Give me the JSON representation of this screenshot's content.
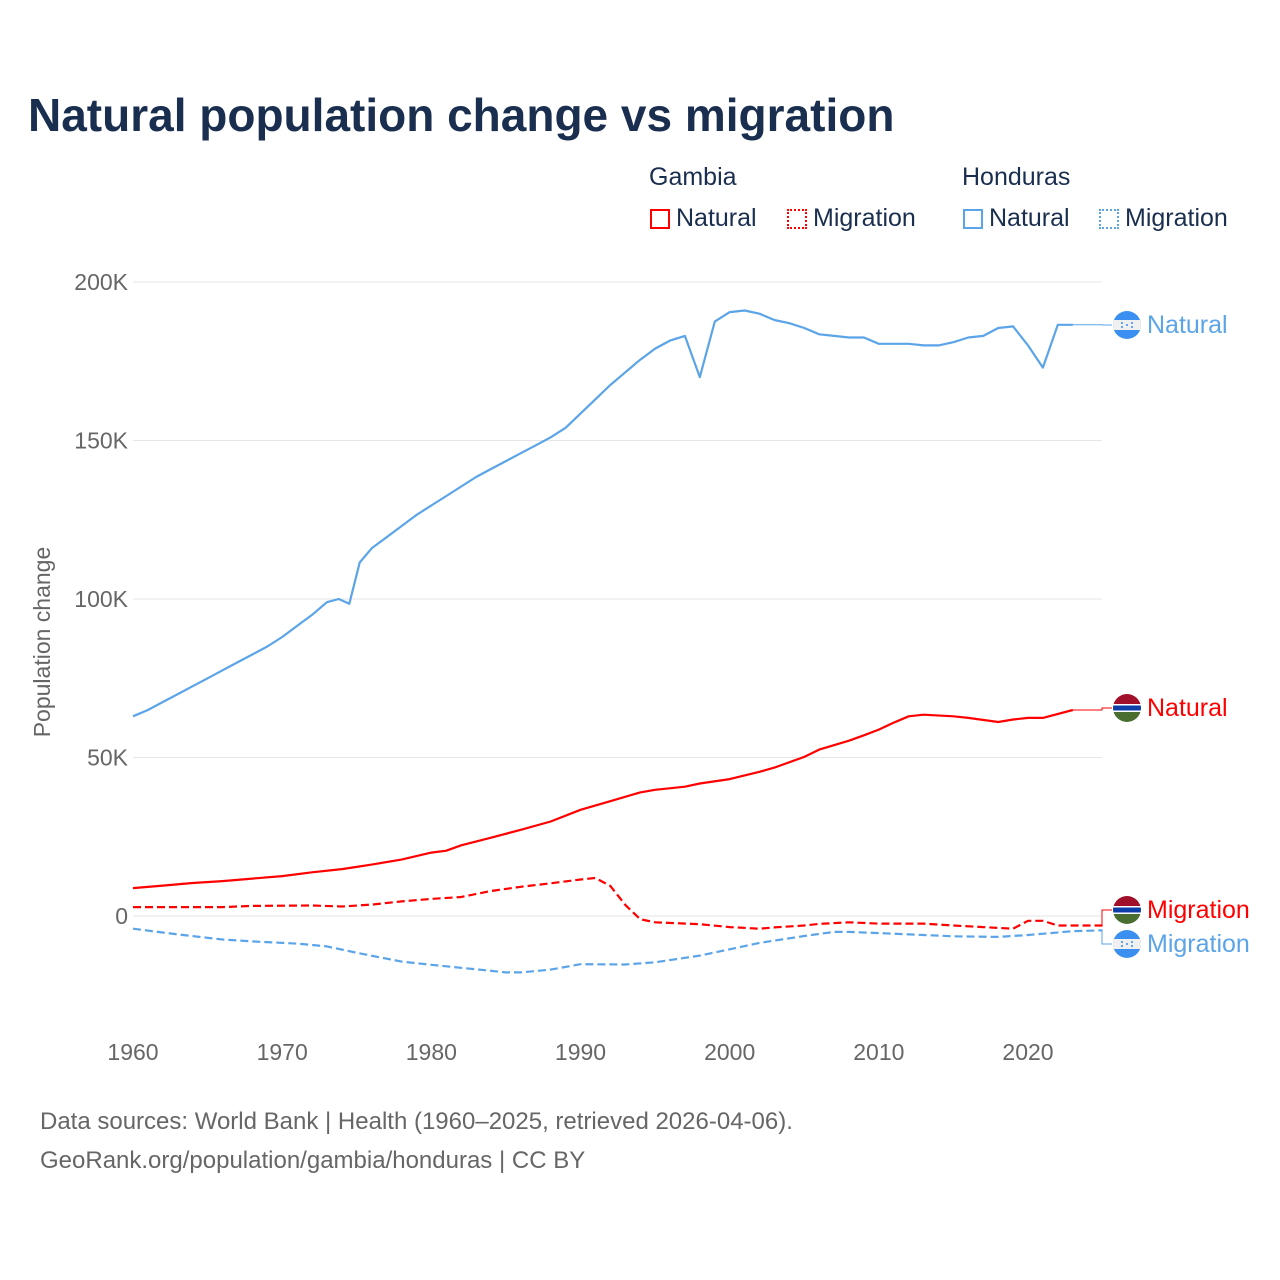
{
  "title": "Natural population change vs migration",
  "legend": {
    "groups": [
      {
        "name": "Gambia",
        "items": [
          "Natural",
          "Migration"
        ]
      },
      {
        "name": "Honduras",
        "items": [
          "Natural",
          "Migration"
        ]
      }
    ]
  },
  "colors": {
    "gambia": "#ff0000",
    "honduras": "#5ba4e8",
    "grid": "#e6e6e6",
    "text": "#1a2e4f",
    "axis_text": "#666666"
  },
  "footer": {
    "line1": "Data sources: World Bank | Health (1960–2025, retrieved 2026-04-06).",
    "line2": "GeoRank.org/population/gambia/honduras | CC BY"
  },
  "chart_data": {
    "type": "line",
    "title": "Natural population change vs migration",
    "xlabel": "",
    "ylabel": "Population change",
    "xlim": [
      1960,
      2025
    ],
    "ylim": [
      -30000,
      200000
    ],
    "x_ticks": [
      "1960",
      "1970",
      "1980",
      "1990",
      "2000",
      "2010",
      "2020"
    ],
    "x_tick_values": [
      1960,
      1970,
      1980,
      1990,
      2000,
      2010,
      2020
    ],
    "y_ticks": [
      "0",
      "50K",
      "100K",
      "150K",
      "200K"
    ],
    "y_tick_values": [
      0,
      50000,
      100000,
      150000,
      200000
    ],
    "grid": true,
    "series": [
      {
        "name": "Natural",
        "country": "Honduras",
        "style": "solid",
        "end_label": "Natural",
        "points": [
          [
            1960,
            63000
          ],
          [
            1961,
            65000
          ],
          [
            1962,
            67500
          ],
          [
            1963,
            70000
          ],
          [
            1964,
            72500
          ],
          [
            1965,
            75000
          ],
          [
            1966,
            77500
          ],
          [
            1967,
            80000
          ],
          [
            1968,
            82500
          ],
          [
            1969,
            85000
          ],
          [
            1970,
            88000
          ],
          [
            1971,
            91500
          ],
          [
            1972,
            95000
          ],
          [
            1973,
            99000
          ],
          [
            1973.8,
            100000
          ],
          [
            1974.5,
            98500
          ],
          [
            1975.2,
            111500
          ],
          [
            1976,
            116000
          ],
          [
            1977,
            119500
          ],
          [
            1978,
            123000
          ],
          [
            1979,
            126500
          ],
          [
            1980,
            129500
          ],
          [
            1981,
            132500
          ],
          [
            1982,
            135500
          ],
          [
            1983,
            138500
          ],
          [
            1984,
            141000
          ],
          [
            1985,
            143500
          ],
          [
            1986,
            146000
          ],
          [
            1987,
            148500
          ],
          [
            1988,
            151000
          ],
          [
            1989,
            154000
          ],
          [
            1990,
            158500
          ],
          [
            1991,
            163000
          ],
          [
            1992,
            167500
          ],
          [
            1993,
            171500
          ],
          [
            1994,
            175500
          ],
          [
            1995,
            179000
          ],
          [
            1996,
            181500
          ],
          [
            1997,
            183000
          ],
          [
            1998,
            170000
          ],
          [
            1999,
            187500
          ],
          [
            2000,
            190500
          ],
          [
            2001,
            191000
          ],
          [
            2002,
            190000
          ],
          [
            2003,
            188000
          ],
          [
            2004,
            187000
          ],
          [
            2005,
            185500
          ],
          [
            2006,
            183500
          ],
          [
            2007,
            183000
          ],
          [
            2008,
            182500
          ],
          [
            2009,
            182500
          ],
          [
            2010,
            180500
          ],
          [
            2011,
            180500
          ],
          [
            2012,
            180500
          ],
          [
            2013,
            180000
          ],
          [
            2014,
            180000
          ],
          [
            2015,
            181000
          ],
          [
            2016,
            182500
          ],
          [
            2017,
            183000
          ],
          [
            2018,
            185500
          ],
          [
            2019,
            186000
          ],
          [
            2020,
            180000
          ],
          [
            2021,
            173000
          ],
          [
            2022,
            186500
          ],
          [
            2023,
            186500
          ]
        ]
      },
      {
        "name": "Natural",
        "country": "Gambia",
        "style": "solid",
        "end_label": "Natural",
        "points": [
          [
            1960,
            8800
          ],
          [
            1962,
            9600
          ],
          [
            1964,
            10400
          ],
          [
            1966,
            11000
          ],
          [
            1968,
            11800
          ],
          [
            1970,
            12600
          ],
          [
            1972,
            13800
          ],
          [
            1974,
            14800
          ],
          [
            1975,
            15500
          ],
          [
            1976,
            16200
          ],
          [
            1978,
            17800
          ],
          [
            1980,
            20000
          ],
          [
            1981,
            20600
          ],
          [
            1982,
            22300
          ],
          [
            1984,
            24700
          ],
          [
            1986,
            27200
          ],
          [
            1988,
            29800
          ],
          [
            1990,
            33500
          ],
          [
            1992,
            36200
          ],
          [
            1994,
            39000
          ],
          [
            1995,
            39800
          ],
          [
            1997,
            40800
          ],
          [
            1998,
            41800
          ],
          [
            2000,
            43200
          ],
          [
            2002,
            45500
          ],
          [
            2003,
            46800
          ],
          [
            2005,
            50200
          ],
          [
            2006,
            52500
          ],
          [
            2008,
            55300
          ],
          [
            2009,
            57000
          ],
          [
            2010,
            58800
          ],
          [
            2011,
            61000
          ],
          [
            2012,
            63000
          ],
          [
            2013,
            63500
          ],
          [
            2015,
            63000
          ],
          [
            2016,
            62500
          ],
          [
            2018,
            61200
          ],
          [
            2019,
            62000
          ],
          [
            2020,
            62500
          ],
          [
            2021,
            62500
          ],
          [
            2023,
            65000
          ]
        ]
      },
      {
        "name": "Migration",
        "country": "Gambia",
        "style": "dashed",
        "end_label": "Migration",
        "points": [
          [
            1960,
            2800
          ],
          [
            1966,
            2800
          ],
          [
            1968,
            3200
          ],
          [
            1972,
            3300
          ],
          [
            1974,
            3000
          ],
          [
            1976,
            3600
          ],
          [
            1978,
            4600
          ],
          [
            1980,
            5400
          ],
          [
            1982,
            6000
          ],
          [
            1984,
            7900
          ],
          [
            1986,
            9200
          ],
          [
            1988,
            10300
          ],
          [
            1990,
            11500
          ],
          [
            1991,
            12000
          ],
          [
            1992,
            9500
          ],
          [
            1993,
            3500
          ],
          [
            1994,
            -1000
          ],
          [
            1995,
            -2000
          ],
          [
            1998,
            -2600
          ],
          [
            2000,
            -3500
          ],
          [
            2002,
            -4000
          ],
          [
            2003,
            -3600
          ],
          [
            2005,
            -3000
          ],
          [
            2006,
            -2500
          ],
          [
            2008,
            -2000
          ],
          [
            2010,
            -2400
          ],
          [
            2013,
            -2400
          ],
          [
            2015,
            -3000
          ],
          [
            2017,
            -3500
          ],
          [
            2019,
            -4000
          ],
          [
            2020,
            -1500
          ],
          [
            2021,
            -1500
          ],
          [
            2022,
            -3000
          ],
          [
            2025,
            -3000
          ]
        ]
      },
      {
        "name": "Migration",
        "country": "Honduras",
        "style": "dashed",
        "end_label": "Migration",
        "points": [
          [
            1960,
            -4000
          ],
          [
            1963,
            -5800
          ],
          [
            1966,
            -7400
          ],
          [
            1968,
            -8000
          ],
          [
            1971,
            -8700
          ],
          [
            1973,
            -9600
          ],
          [
            1975,
            -11600
          ],
          [
            1978,
            -14400
          ],
          [
            1980,
            -15400
          ],
          [
            1983,
            -16800
          ],
          [
            1985,
            -17800
          ],
          [
            1986,
            -17800
          ],
          [
            1988,
            -16900
          ],
          [
            1990,
            -15200
          ],
          [
            1993,
            -15300
          ],
          [
            1995,
            -14600
          ],
          [
            1998,
            -12500
          ],
          [
            2000,
            -10500
          ],
          [
            2002,
            -8500
          ],
          [
            2005,
            -6300
          ],
          [
            2007,
            -5000
          ],
          [
            2008,
            -5000
          ],
          [
            2010,
            -5400
          ],
          [
            2013,
            -6000
          ],
          [
            2015,
            -6400
          ],
          [
            2018,
            -6600
          ],
          [
            2020,
            -6000
          ],
          [
            2023,
            -4800
          ],
          [
            2025,
            -4500
          ]
        ]
      }
    ]
  }
}
